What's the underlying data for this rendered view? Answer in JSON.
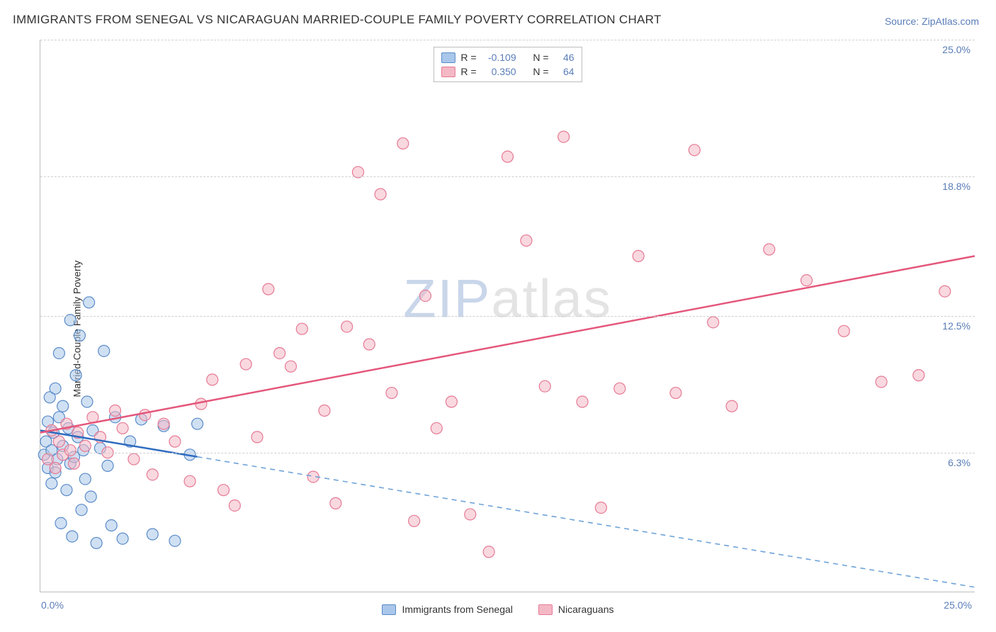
{
  "header": {
    "title": "IMMIGRANTS FROM SENEGAL VS NICARAGUAN MARRIED-COUPLE FAMILY POVERTY CORRELATION CHART",
    "source": "Source: ZipAtlas.com"
  },
  "chart": {
    "type": "scatter",
    "ylabel": "Married-Couple Family Poverty",
    "xlim": [
      0,
      25
    ],
    "ylim": [
      0,
      25
    ],
    "yticks": [
      6.3,
      12.5,
      18.8,
      25.0
    ],
    "ytick_labels": [
      "6.3%",
      "12.5%",
      "18.8%",
      "25.0%"
    ],
    "origin_label": "0.0%",
    "xmax_label": "25.0%",
    "background_color": "#ffffff",
    "grid_color": "#cfcfcf",
    "axis_color": "#bdbdbd",
    "marker_radius": 8,
    "watermark": {
      "part1": "ZIP",
      "part2": "atlas"
    },
    "series": [
      {
        "name": "Immigrants from Senegal",
        "fill_color": "#a9c7ea",
        "stroke_color": "#5a8bc9",
        "fill_opacity": 0.55,
        "line_color": "#2f6cc0",
        "line_dash_color": "#6fa3d8",
        "correlation": {
          "r_label": "R =",
          "r_value": "-0.109",
          "n_label": "N =",
          "n_value": "46"
        },
        "trend": {
          "y_at_x0": 7.3,
          "y_at_x25": 0.2,
          "solid_until_x": 4.2
        },
        "line_width": 2.5,
        "points": [
          [
            0.1,
            6.2
          ],
          [
            0.15,
            6.8
          ],
          [
            0.2,
            5.6
          ],
          [
            0.2,
            7.7
          ],
          [
            0.25,
            8.8
          ],
          [
            0.3,
            6.4
          ],
          [
            0.3,
            4.9
          ],
          [
            0.35,
            7.2
          ],
          [
            0.4,
            9.2
          ],
          [
            0.4,
            5.4
          ],
          [
            0.45,
            6.0
          ],
          [
            0.5,
            7.9
          ],
          [
            0.5,
            10.8
          ],
          [
            0.55,
            3.1
          ],
          [
            0.6,
            6.6
          ],
          [
            0.6,
            8.4
          ],
          [
            0.7,
            4.6
          ],
          [
            0.75,
            7.4
          ],
          [
            0.8,
            5.8
          ],
          [
            0.8,
            12.3
          ],
          [
            0.85,
            2.5
          ],
          [
            0.9,
            6.1
          ],
          [
            0.95,
            9.8
          ],
          [
            1.0,
            7.0
          ],
          [
            1.05,
            11.6
          ],
          [
            1.1,
            3.7
          ],
          [
            1.15,
            6.4
          ],
          [
            1.2,
            5.1
          ],
          [
            1.25,
            8.6
          ],
          [
            1.3,
            13.1
          ],
          [
            1.35,
            4.3
          ],
          [
            1.4,
            7.3
          ],
          [
            1.5,
            2.2
          ],
          [
            1.6,
            6.5
          ],
          [
            1.7,
            10.9
          ],
          [
            1.8,
            5.7
          ],
          [
            1.9,
            3.0
          ],
          [
            2.0,
            7.9
          ],
          [
            2.2,
            2.4
          ],
          [
            2.4,
            6.8
          ],
          [
            2.7,
            7.8
          ],
          [
            3.0,
            2.6
          ],
          [
            3.3,
            7.5
          ],
          [
            3.6,
            2.3
          ],
          [
            4.0,
            6.2
          ],
          [
            4.2,
            7.6
          ]
        ]
      },
      {
        "name": "Nicaraguans",
        "fill_color": "#f4b8c5",
        "stroke_color": "#e67a95",
        "fill_opacity": 0.55,
        "line_color": "#e4577b",
        "line_dash_color": "#f0a3b6",
        "correlation": {
          "r_label": "R =",
          "r_value": "0.350",
          "n_label": "N =",
          "n_value": "64"
        },
        "trend": {
          "y_at_x0": 7.2,
          "y_at_x25": 15.2,
          "solid_until_x": 25
        },
        "line_width": 2.5,
        "points": [
          [
            0.2,
            6.0
          ],
          [
            0.3,
            7.3
          ],
          [
            0.4,
            5.6
          ],
          [
            0.5,
            6.8
          ],
          [
            0.6,
            6.2
          ],
          [
            0.7,
            7.6
          ],
          [
            0.8,
            6.4
          ],
          [
            0.9,
            5.8
          ],
          [
            1.0,
            7.2
          ],
          [
            1.2,
            6.6
          ],
          [
            1.4,
            7.9
          ],
          [
            1.6,
            7.0
          ],
          [
            1.8,
            6.3
          ],
          [
            2.0,
            8.2
          ],
          [
            2.2,
            7.4
          ],
          [
            2.5,
            6.0
          ],
          [
            2.8,
            8.0
          ],
          [
            3.0,
            5.3
          ],
          [
            3.3,
            7.6
          ],
          [
            3.6,
            6.8
          ],
          [
            4.0,
            5.0
          ],
          [
            4.3,
            8.5
          ],
          [
            4.6,
            9.6
          ],
          [
            4.9,
            4.6
          ],
          [
            5.2,
            3.9
          ],
          [
            5.5,
            10.3
          ],
          [
            5.8,
            7.0
          ],
          [
            6.1,
            13.7
          ],
          [
            6.4,
            10.8
          ],
          [
            6.7,
            10.2
          ],
          [
            7.0,
            11.9
          ],
          [
            7.3,
            5.2
          ],
          [
            7.6,
            8.2
          ],
          [
            7.9,
            4.0
          ],
          [
            8.2,
            12.0
          ],
          [
            8.5,
            19.0
          ],
          [
            8.8,
            11.2
          ],
          [
            9.1,
            18.0
          ],
          [
            9.4,
            9.0
          ],
          [
            9.7,
            20.3
          ],
          [
            10.0,
            3.2
          ],
          [
            10.3,
            13.4
          ],
          [
            10.6,
            7.4
          ],
          [
            11.0,
            8.6
          ],
          [
            11.5,
            3.5
          ],
          [
            12.0,
            1.8
          ],
          [
            12.5,
            19.7
          ],
          [
            13.0,
            15.9
          ],
          [
            13.5,
            9.3
          ],
          [
            14.0,
            20.6
          ],
          [
            14.5,
            8.6
          ],
          [
            15.0,
            3.8
          ],
          [
            15.5,
            9.2
          ],
          [
            16.0,
            15.2
          ],
          [
            17.0,
            9.0
          ],
          [
            17.5,
            20.0
          ],
          [
            18.0,
            12.2
          ],
          [
            18.5,
            8.4
          ],
          [
            19.5,
            15.5
          ],
          [
            20.5,
            14.1
          ],
          [
            21.5,
            11.8
          ],
          [
            22.5,
            9.5
          ],
          [
            23.5,
            9.8
          ],
          [
            24.2,
            13.6
          ]
        ]
      }
    ]
  }
}
